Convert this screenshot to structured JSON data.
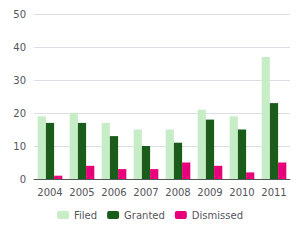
{
  "chart_data": {
    "type": "bar",
    "categories": [
      "2004",
      "2005",
      "2006",
      "2007",
      "2008",
      "2009",
      "2010",
      "2011"
    ],
    "series": [
      {
        "name": "Filed",
        "color": "#c6edc6",
        "values": [
          19,
          20,
          17,
          15,
          15,
          21,
          19,
          37
        ]
      },
      {
        "name": "Granted",
        "color": "#1a5c1a",
        "values": [
          17,
          17,
          13,
          10,
          11,
          18,
          15,
          23
        ]
      },
      {
        "name": "Dismissed",
        "color": "#e8007a",
        "values": [
          1,
          4,
          3,
          3,
          5,
          4,
          2,
          5
        ]
      }
    ],
    "ylim": [
      0,
      50
    ],
    "yticks": [
      0,
      10,
      20,
      30,
      40,
      50
    ],
    "grid": true,
    "legend": "bottom"
  }
}
